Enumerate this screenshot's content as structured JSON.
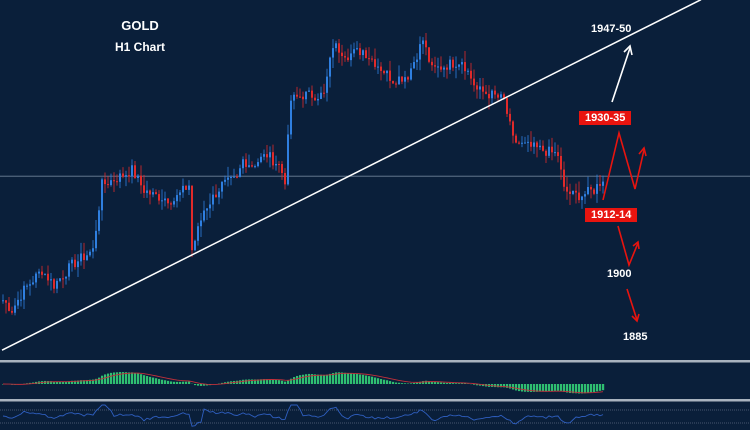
{
  "chart_data": {
    "type": "candlestick",
    "title": "GOLD",
    "subtitle": "H1 Chart",
    "colors": {
      "background": "#0a1f3a",
      "up": "#2f7fe0",
      "down": "#e02a2a",
      "trendline": "#ffffff",
      "macd_hist": "#2fbf71",
      "macd_signal": "#c0303a",
      "oscillator": "#2f5fc0",
      "projection_bull": "#ffffff",
      "projection_bear": "#e8140f"
    },
    "price_path": [
      [
        0,
        1896.1
      ],
      [
        3,
        1894.2
      ],
      [
        7,
        1898.1
      ],
      [
        13,
        1902.0
      ],
      [
        17,
        1899.1
      ],
      [
        23,
        1903.0
      ],
      [
        30,
        1905.9
      ],
      [
        33,
        1918.7
      ],
      [
        40,
        1920.6
      ],
      [
        43,
        1921.6
      ],
      [
        47,
        1917.7
      ],
      [
        50,
        1916.7
      ],
      [
        57,
        1915.7
      ],
      [
        62,
        1918.7
      ],
      [
        63,
        1905.9
      ],
      [
        67,
        1913.8
      ],
      [
        73,
        1918.7
      ],
      [
        78,
        1919.7
      ],
      [
        80,
        1923.6
      ],
      [
        83,
        1922.6
      ],
      [
        88,
        1924.6
      ],
      [
        92,
        1922.6
      ],
      [
        94,
        1919.7
      ],
      [
        96,
        1935.3
      ],
      [
        100,
        1936.3
      ],
      [
        107,
        1936.3
      ],
      [
        110,
        1946.1
      ],
      [
        115,
        1944.2
      ],
      [
        120,
        1945.1
      ],
      [
        125,
        1942.2
      ],
      [
        130,
        1939.3
      ],
      [
        135,
        1940.2
      ],
      [
        140,
        1947.1
      ],
      [
        143,
        1941.2
      ],
      [
        148,
        1942.2
      ],
      [
        153,
        1943.2
      ],
      [
        158,
        1937.3
      ],
      [
        163,
        1936.3
      ],
      [
        167,
        1935.3
      ],
      [
        170,
        1927.5
      ],
      [
        173,
        1926.5
      ],
      [
        180,
        1925.5
      ],
      [
        185,
        1924.6
      ],
      [
        187,
        1917.7
      ],
      [
        190,
        1916.7
      ],
      [
        193,
        1916.7
      ],
      [
        197,
        1917.7
      ],
      [
        200,
        1920.0
      ]
    ],
    "horizontal_level": 1920.4,
    "trendline": {
      "from": [
        0,
        1886.3
      ],
      "to": [
        233,
        1955.0
      ]
    },
    "annotations": {
      "target_high": "1947-50",
      "resistance": "1930-35",
      "support": "1912-14",
      "target_low_1": "1900",
      "target_low_2": "1885"
    },
    "indicators": [
      "MACD",
      "oscillator"
    ],
    "grid": false,
    "legend": "none"
  }
}
